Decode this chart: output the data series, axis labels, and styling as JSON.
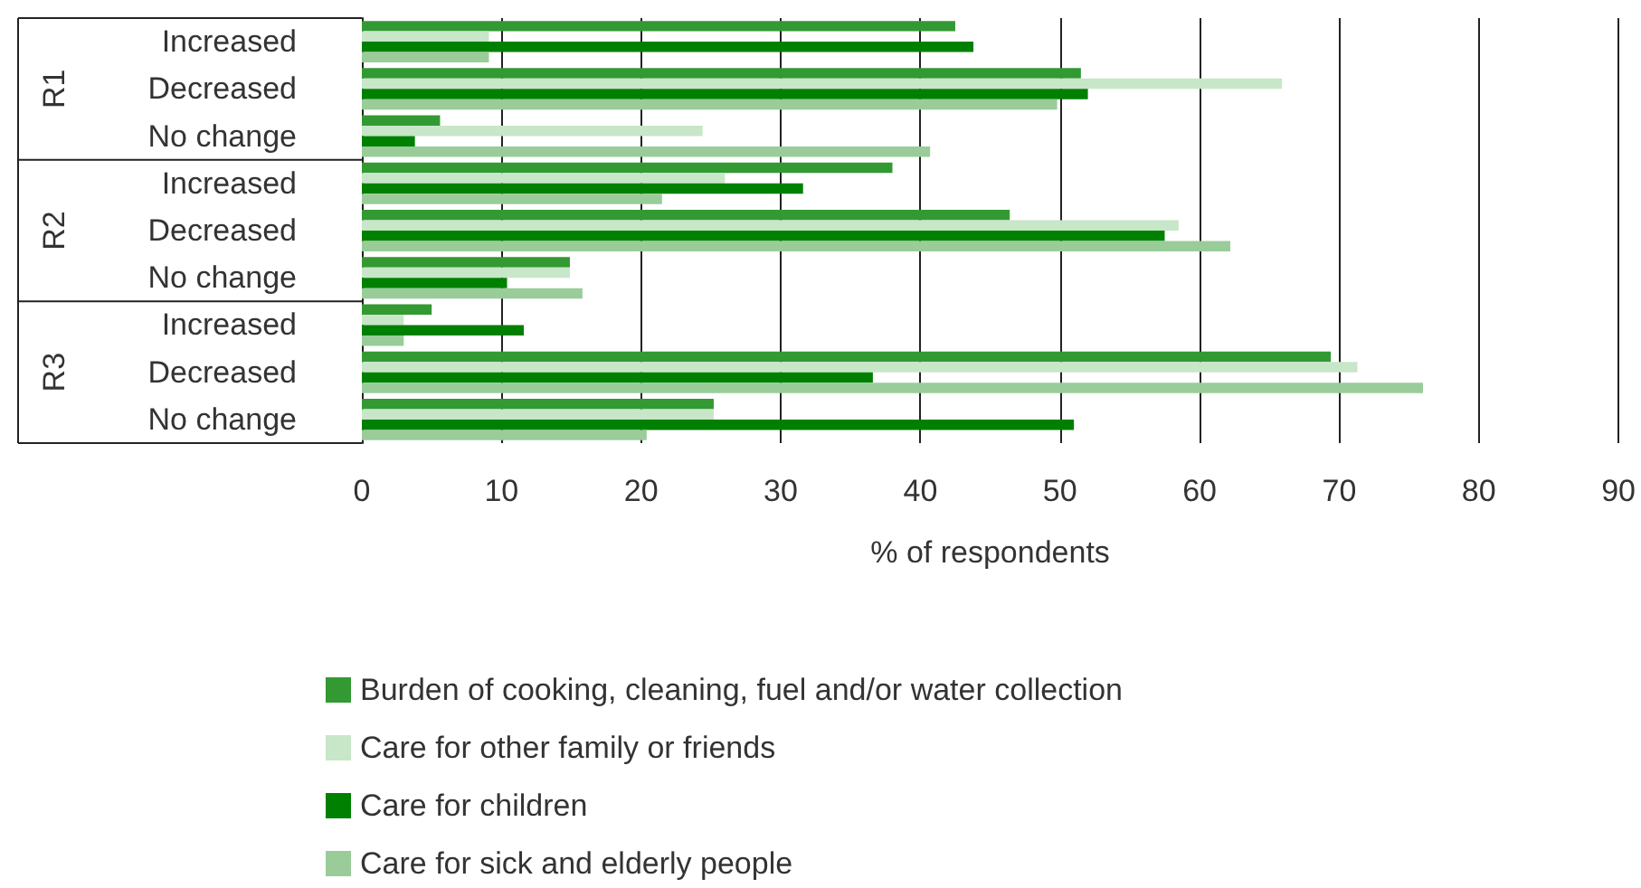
{
  "chart_data": {
    "type": "bar",
    "orientation": "horizontal",
    "xlabel": "% of respondents",
    "categories": [
      "Increased",
      "Decreased",
      "No change",
      "Increased",
      "Decreased",
      "No change",
      "Increased",
      "Decreased",
      "No change"
    ],
    "annotations": [
      "R1",
      "R2",
      "R3"
    ],
    "series": [
      {
        "name": "Burden of cooking, cleaning, fuel and/or water collection",
        "color": "#339933",
        "values": [
          42.5,
          51.5,
          5.6,
          38,
          46.4,
          14.9,
          5,
          69.4,
          25.2
        ]
      },
      {
        "name": "Care for other family or friends",
        "color": "#c8e6c8",
        "values": [
          9.1,
          65.9,
          24.4,
          26,
          58.5,
          14.9,
          3,
          71.3,
          25.2
        ]
      },
      {
        "name": "Care for children",
        "color": "#008000",
        "values": [
          43.8,
          52,
          3.8,
          31.6,
          57.5,
          10.4,
          11.6,
          36.6,
          51
        ]
      },
      {
        "name": "Care for sick and elderly people",
        "color": "#99cc99",
        "values": [
          9.1,
          49.8,
          40.7,
          21.5,
          62.2,
          15.8,
          3,
          76,
          20.4
        ]
      }
    ],
    "xlim": [
      0,
      90
    ],
    "xticks": [
      0,
      10,
      20,
      30,
      40,
      50,
      60,
      70,
      80,
      90
    ],
    "grid": "x",
    "legend": "bottom"
  }
}
